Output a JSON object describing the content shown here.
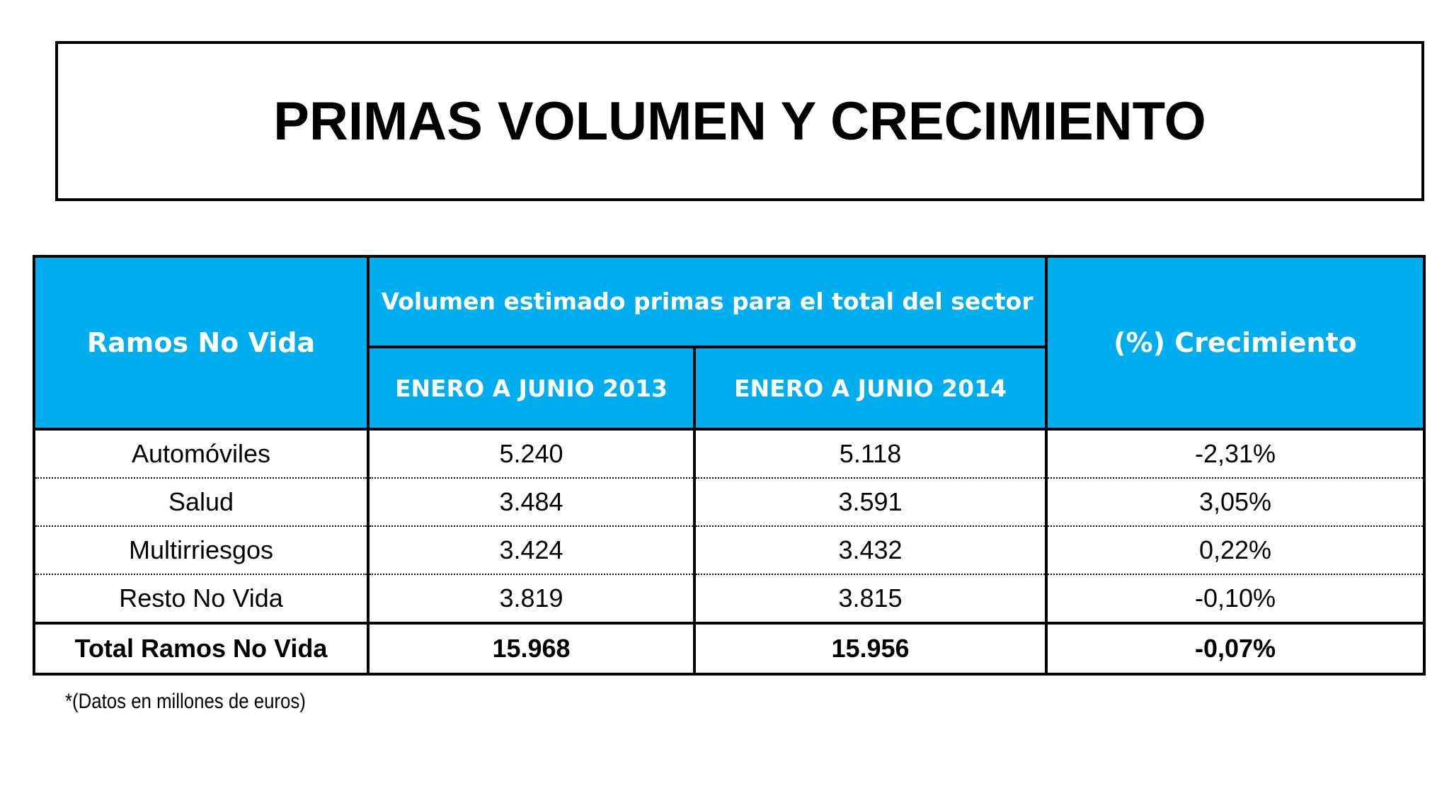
{
  "title": "PRIMAS VOLUMEN Y CRECIMIENTO",
  "table": {
    "header_ramos": "Ramos No Vida",
    "header_volumen": "Volumen estimado primas para el total del sector",
    "header_period_2013": "ENERO A JUNIO 2013",
    "header_period_2014": "ENERO A JUNIO 2014",
    "header_crecimiento": "(%) Crecimiento",
    "rows": [
      {
        "ramo": "Automóviles",
        "v2013": "5.240",
        "v2014": "5.118",
        "crecimiento": "-2,31%"
      },
      {
        "ramo": "Salud",
        "v2013": "3.484",
        "v2014": "3.591",
        "crecimiento": "3,05%"
      },
      {
        "ramo": "Multirriesgos",
        "v2013": "3.424",
        "v2014": "3.432",
        "crecimiento": "0,22%"
      },
      {
        "ramo": "Resto No Vida",
        "v2013": "3.819",
        "v2014": "3.815",
        "crecimiento": "-0,10%"
      }
    ],
    "total": {
      "ramo": "Total Ramos No Vida",
      "v2013": "15.968",
      "v2014": "15.956",
      "crecimiento": "-0,07%"
    }
  },
  "footnote": "*(Datos en millones de euros)",
  "colors": {
    "header_background": "#00adee",
    "header_text": "#ffffff",
    "border": "#000000"
  }
}
